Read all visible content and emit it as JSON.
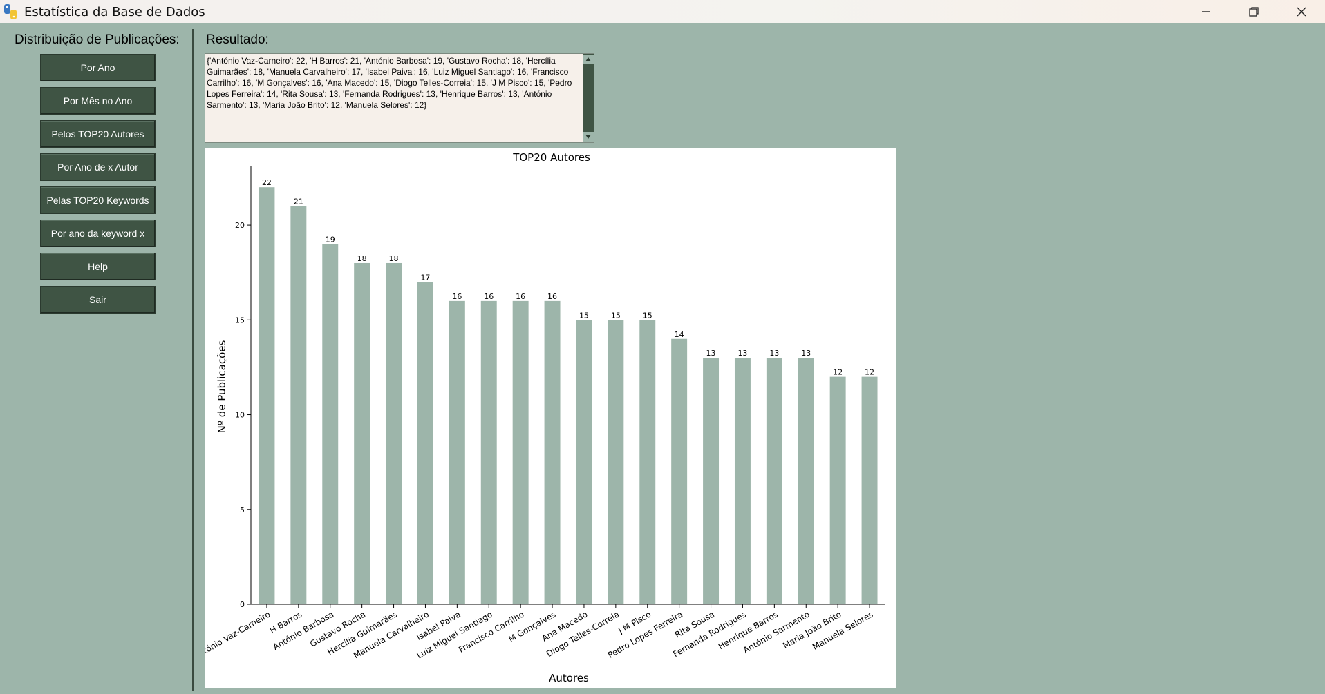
{
  "window": {
    "title": "Estatística da Base de Dados",
    "icons": [
      "app-icon",
      "minimize-icon",
      "restore-icon",
      "close-icon"
    ]
  },
  "sidebar": {
    "heading": "Distribuição de Publicações:",
    "buttons": [
      {
        "label": "Por Ano"
      },
      {
        "label": "Por Mês no Ano"
      },
      {
        "label": "Pelos TOP20 Autores"
      },
      {
        "label": "Por Ano de x Autor"
      },
      {
        "label": "Pelas TOP20 Keywords"
      },
      {
        "label": "Por ano da keyword x"
      },
      {
        "label": "Help"
      },
      {
        "label": "Sair"
      }
    ]
  },
  "result": {
    "label": "Resultado:",
    "text": "{'António Vaz-Carneiro': 22, 'H Barros': 21, 'António Barbosa': 19, 'Gustavo Rocha': 18, 'Hercília Guimarães': 18, 'Manuela Carvalheiro': 17, 'Isabel Paiva': 16, 'Luiz Miguel Santiago': 16, 'Francisco Carrilho': 16, 'M Gonçalves': 16, 'Ana Macedo': 15, 'Diogo Telles-Correia': 15, 'J M Pisco': 15, 'Pedro Lopes Ferreira': 14, 'Rita Sousa': 13, 'Fernanda Rodrigues': 13, 'Henrique Barros': 13, 'António Sarmento': 13, 'Maria João Brito': 12, 'Manuela Selores': 12}"
  },
  "colors": {
    "background": "#9db5aa",
    "button": "#3f5444",
    "bar": "#9db5aa"
  },
  "chart_data": {
    "type": "bar",
    "title": "TOP20 Autores",
    "xlabel": "Autores",
    "ylabel": "Nº de Publicações",
    "categories": [
      "António Vaz-Carneiro",
      "H Barros",
      "António Barbosa",
      "Gustavo Rocha",
      "Hercília Guimarães",
      "Manuela Carvalheiro",
      "Isabel Paiva",
      "Luiz Miguel Santiago",
      "Francisco Carrilho",
      "M Gonçalves",
      "Ana Macedo",
      "Diogo Telles-Correia",
      "J M Pisco",
      "Pedro Lopes Ferreira",
      "Rita Sousa",
      "Fernanda Rodrigues",
      "Henrique Barros",
      "António Sarmento",
      "Maria João Brito",
      "Manuela Selores"
    ],
    "values": [
      22,
      21,
      19,
      18,
      18,
      17,
      16,
      16,
      16,
      16,
      15,
      15,
      15,
      14,
      13,
      13,
      13,
      13,
      12,
      12
    ],
    "yticks": [
      0,
      5,
      10,
      15,
      20
    ],
    "ylim": [
      0,
      23.1
    ],
    "grid": false,
    "legend": "none"
  }
}
